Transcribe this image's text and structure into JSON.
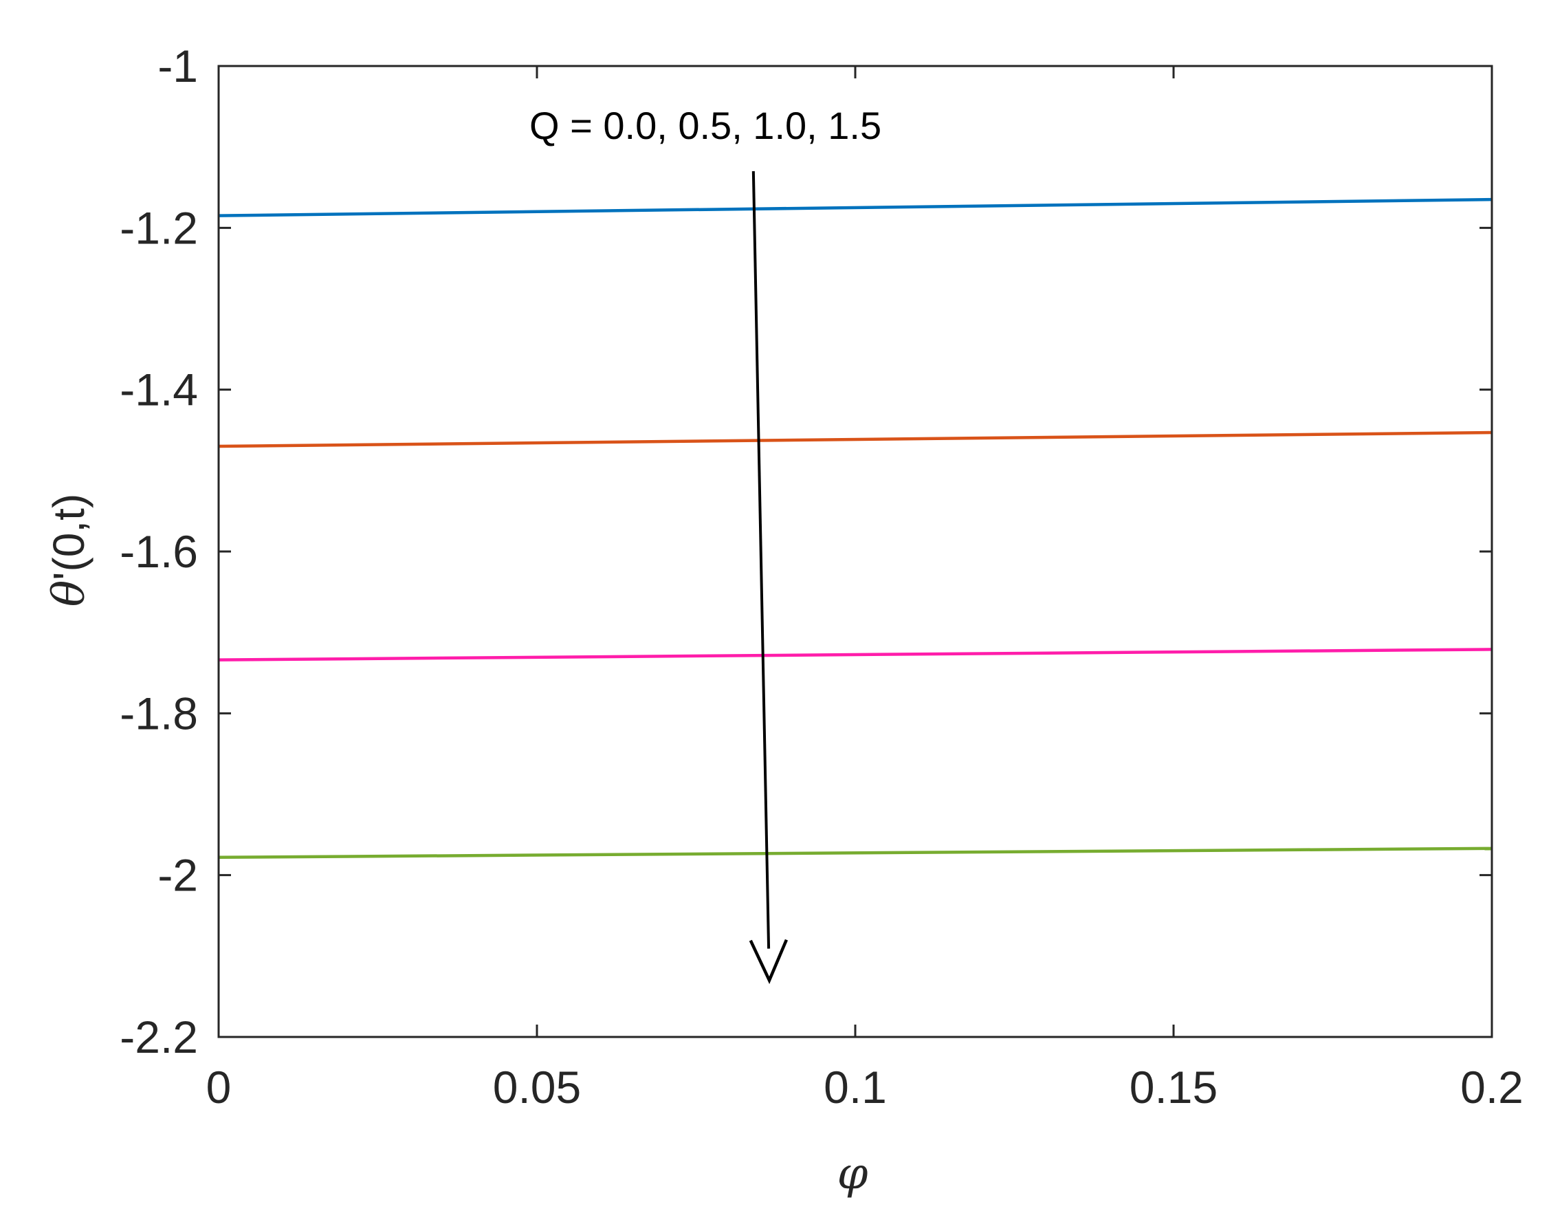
{
  "chart_data": {
    "type": "line",
    "title": "",
    "xlabel": "φ",
    "ylabel_symbol": "θ",
    "ylabel_rest": "'(0,t)",
    "xlim": [
      0,
      0.2
    ],
    "ylim": [
      -2.2,
      -1
    ],
    "x_ticks": [
      0,
      0.05,
      0.1,
      0.15,
      0.2
    ],
    "x_tick_labels": [
      "0",
      "0.05",
      "0.1",
      "0.15",
      "0.2"
    ],
    "y_ticks": [
      -1,
      -1.2,
      -1.4,
      -1.6,
      -1.8,
      -2,
      -2.2
    ],
    "y_tick_labels": [
      "-1",
      "-1.2",
      "-1.4",
      "-1.6",
      "-1.8",
      "-2",
      "-2.2"
    ],
    "grid": false,
    "box": true,
    "series": [
      {
        "x": [
          0,
          0.2
        ],
        "values": [
          -1.185,
          -1.165
        ],
        "color": "#0072BD"
      },
      {
        "x": [
          0,
          0.2
        ],
        "values": [
          -1.47,
          -1.453
        ],
        "color": "#D95319"
      },
      {
        "x": [
          0,
          0.2
        ],
        "values": [
          -1.734,
          -1.721
        ],
        "color": "#FF1DAA"
      },
      {
        "x": [
          0,
          0.2
        ],
        "values": [
          -1.978,
          -1.967
        ],
        "color": "#77AC30"
      }
    ],
    "annotation": {
      "text": "Q = 0.0, 0.5, 1.0, 1.5",
      "arrow_from": [
        0.084,
        -1.13
      ],
      "arrow_to": [
        0.0865,
        -2.13
      ],
      "arrow_color": "#000000"
    }
  }
}
